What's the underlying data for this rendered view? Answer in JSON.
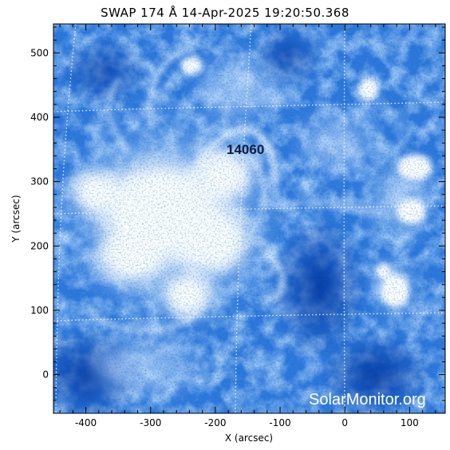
{
  "title": "SWAP 174 Å 14-Apr-2025 19:20:50.368",
  "x_axis": {
    "label": "X (arcsec)",
    "range": [
      -450,
      155
    ],
    "ticks": [
      -400,
      -300,
      -200,
      -100,
      0,
      100
    ]
  },
  "y_axis": {
    "label": "Y (arcsec)",
    "range": [
      -60,
      545
    ],
    "ticks": [
      0,
      100,
      200,
      300,
      400,
      500
    ]
  },
  "active_region": {
    "number": "14060",
    "x": -160,
    "y": 345
  },
  "watermark": "SolarMonitor.org",
  "colors": {
    "deep": "#003ca8",
    "mid": "#3f86e4",
    "bright": "#ffffff",
    "grid": "#ffffff"
  }
}
